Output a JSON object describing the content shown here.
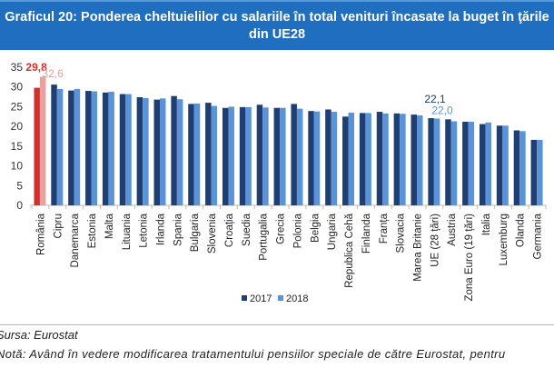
{
  "header": {
    "title": "Graficul 20: Ponderea cheltuielilor cu salariile în total venituri încasate la buget în ţările din UE28"
  },
  "chart_data": {
    "type": "bar",
    "title": "Graficul 20: Ponderea cheltuielilor cu salariile în total venituri încasate la buget în ţările din UE28",
    "xlabel": "",
    "ylabel": "",
    "ylim": [
      0,
      35
    ],
    "yticks": [
      "0",
      "5",
      "10",
      "15",
      "20",
      "25",
      "30",
      "35"
    ],
    "grid": false,
    "legend": "bottom",
    "categories": [
      "România",
      "Cipru",
      "Danemarca",
      "Estonia",
      "Malta",
      "Lituania",
      "Letonia",
      "Irlanda",
      "Spania",
      "Bulgaria",
      "Slovenia",
      "Croația",
      "Suedia",
      "Portugalia",
      "Grecia",
      "Polonia",
      "Belgia",
      "Ungaria",
      "Republica Cehă",
      "Finlanda",
      "Franța",
      "Slovacia",
      "Marea Britanie",
      "UE (28 țări)",
      "Austria",
      "Zona Euro (19 țări)",
      "Italia",
      "Luxemburg",
      "Olanda",
      "Germania"
    ],
    "series": [
      {
        "name": "2017",
        "color": "#1F3F73",
        "values": [
          29.8,
          30.6,
          29.1,
          29.0,
          28.6,
          28.2,
          27.4,
          26.8,
          27.7,
          25.7,
          26.0,
          24.7,
          24.9,
          25.5,
          24.7,
          25.7,
          23.9,
          24.3,
          22.5,
          23.4,
          23.7,
          23.3,
          23.0,
          22.1,
          21.8,
          21.2,
          20.6,
          20.2,
          19.0,
          16.6
        ]
      },
      {
        "name": "2018",
        "color": "#5B93D8",
        "values": [
          32.6,
          29.5,
          29.5,
          28.9,
          28.8,
          28.2,
          27.2,
          27.1,
          26.9,
          25.8,
          25.2,
          25.0,
          24.9,
          24.8,
          24.7,
          24.5,
          23.8,
          23.7,
          23.5,
          23.4,
          23.3,
          23.2,
          22.8,
          22.0,
          21.3,
          21.2,
          21.0,
          20.2,
          18.8,
          16.6
        ]
      }
    ],
    "highlight": {
      "category": "România",
      "colors": {
        "2017": "#D2312B",
        "2018": "#E8A0A0"
      }
    },
    "data_labels": [
      {
        "category": "România",
        "series": "2017",
        "text": "29,8",
        "color": "#D2312B"
      },
      {
        "category": "România",
        "series": "2018",
        "text": "32,6",
        "color": "#E8A0A0"
      },
      {
        "category": "UE (28 țări)",
        "series": "2017",
        "text": "22,1",
        "color": "#1F3F73"
      },
      {
        "category": "UE (28 țări)",
        "series": "2018",
        "text": "22,0",
        "color": "#5B93D8"
      }
    ]
  },
  "footer": {
    "source": "Sursa: Eurostat",
    "note": "Notă: Având în vedere modificarea tratamentului pensiilor speciale de către Eurostat, pentru"
  }
}
